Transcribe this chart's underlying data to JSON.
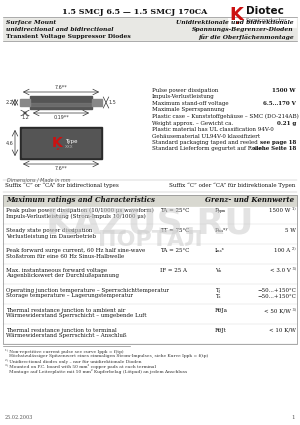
{
  "title_line": "1.5 SMCJ 6.5 — 1.5 SMCJ 170CA",
  "logo_text": "Diotec",
  "logo_sub": "Semiconductor",
  "header_left": [
    "Surface Mount",
    "unidirectional and bidirectional",
    "Transient Voltage Suppressor Diodes"
  ],
  "header_right": [
    "Unidirektionale und bidirektionale",
    "Spannungs-Begrenzer-Dioden",
    "für die Oberflächenmontage"
  ],
  "specs": [
    [
      "Pulse power dissipation",
      "Impuls-Verlustleistung",
      "1500 W"
    ],
    [
      "Maximum stand-off voltage",
      "Maximale Sperrspannung",
      "6.5...170 V"
    ],
    [
      "Plastic case – Kunststoffgehäuse – SMC (DO-214AB)",
      "",
      ""
    ],
    [
      "Weight approx. – Gewicht ca.",
      "",
      "0.21 g"
    ],
    [
      "Plastic material has UL classification 94V-0",
      "",
      ""
    ],
    [
      "Gehäusematerial UL94V-0 klassifiziert",
      "",
      ""
    ],
    [
      "Standard packaging taped and reeled",
      "Standard Lieferform gegurtet auf Rolle",
      "see page 18\nsiehe Seite 18"
    ]
  ],
  "suffix_en": "Suffix “C” or “CA” for bidirectional types",
  "suffix_de": "Suffix “C” oder “CA” für bidirektionale Typen",
  "table_header_left": "Maximum ratings and Characteristics",
  "table_header_right": "Grenz- und Kennwerte",
  "table_rows": [
    {
      "en": "Peak pulse power dissipation (10/1000 μs waveform)",
      "de": "Impuls-Verlustleistung (Strom-Impuls 10/1000 μs)",
      "cond": "TA = 25°C",
      "sym": "PPPM",
      "val": "1500 W ¹⁾"
    },
    {
      "en": "Steady state power dissipation",
      "de": "Verlustleistung im Dauerbetrieb",
      "cond": "TT = 75°C",
      "sym": "P(AV)",
      "val": "5 W"
    },
    {
      "en": "Peak forward surge current, 60 Hz half sine-wave",
      "de": "Stoßstrom für eine 60 Hz Sinus-Halbwelle",
      "cond": "TA = 25°C",
      "sym": "Imax",
      "val": "100 A ²⁾"
    },
    {
      "en": "Max. instantaneous forward voltage",
      "de": "Augenblickswert der Durchlußspannung",
      "cond": "IF = 25 A",
      "sym": "VF",
      "val": "< 3.0 V ³⁾"
    },
    {
      "en": "Operating junction temperature – Sperrschichttemperatur",
      "de": "Storage temperature – Lagerungstemperatur",
      "cond": "",
      "sym": "Tj / Ts",
      "val": "−50...+150°C"
    },
    {
      "en": "Thermal resistance junction to ambient air",
      "de": "Wärmewiderstand Sperrschicht – umgebende Luft",
      "cond": "",
      "sym": "RthJa",
      "val": "< 50 K/W ³⁾"
    },
    {
      "en": "Thermal resistance junction to terminal",
      "de": "Wärmewiderstand Sperrschicht – Anschluß",
      "cond": "",
      "sym": "RthJt",
      "val": "< 10 K/W"
    }
  ],
  "footnotes": [
    "¹⁾ Non-repetitive current pulse see curve Ippk = f(tp)",
    "   Höchstzulässiger Spitzenwert eines einmaligen Strom-Impulses, siehe Kurve Ippk = f(tp)",
    "²⁾ Unidirectional diodes only – nur für unidirektionale Dioden",
    "³⁾ Mounted on P.C. board with 50 mm² copper pads at each terminal",
    "   Montage auf Leiterplatte mit 50 mm² Kupferbelag (Lötpad) an jedem Anschluss"
  ],
  "date": "25.02.2003",
  "page": "1"
}
